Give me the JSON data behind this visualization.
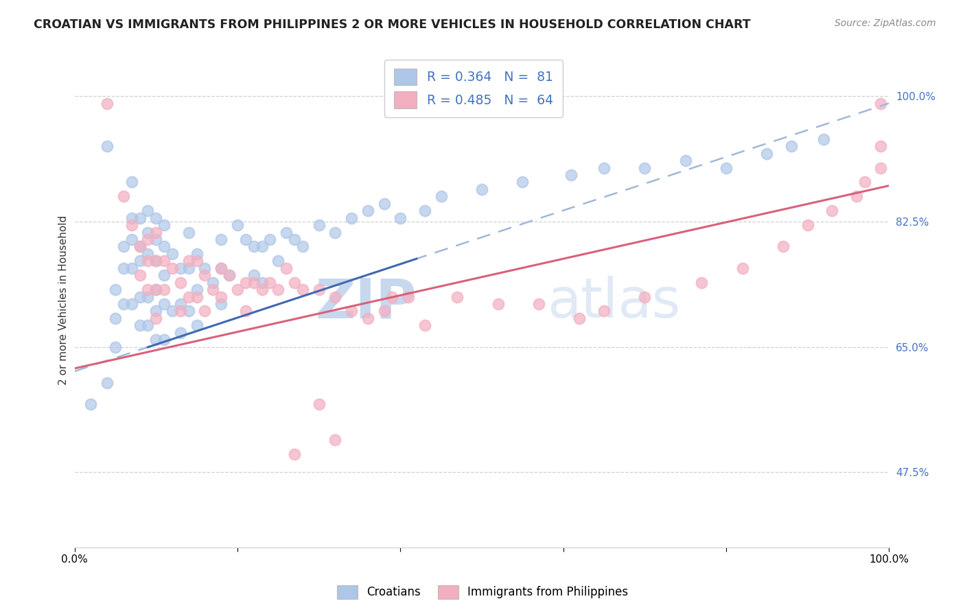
{
  "title": "CROATIAN VS IMMIGRANTS FROM PHILIPPINES 2 OR MORE VEHICLES IN HOUSEHOLD CORRELATION CHART",
  "source": "Source: ZipAtlas.com",
  "ylabel": "2 or more Vehicles in Household",
  "yticks": [
    "47.5%",
    "65.0%",
    "82.5%",
    "100.0%"
  ],
  "ytick_vals": [
    0.475,
    0.65,
    0.825,
    1.0
  ],
  "xlim": [
    0.0,
    1.0
  ],
  "ylim": [
    0.37,
    1.06
  ],
  "blue_color": "#aec6e8",
  "pink_color": "#f2afc0",
  "blue_line_color": "#4169b0",
  "pink_line_color": "#d9607a",
  "watermark_zip": "ZIP",
  "watermark_atlas": "atlas",
  "croatians_label": "Croatians",
  "philippines_label": "Immigrants from Philippines",
  "blue_scatter_x": [
    0.02,
    0.04,
    0.04,
    0.05,
    0.05,
    0.05,
    0.06,
    0.06,
    0.06,
    0.07,
    0.07,
    0.07,
    0.07,
    0.07,
    0.08,
    0.08,
    0.08,
    0.08,
    0.08,
    0.09,
    0.09,
    0.09,
    0.09,
    0.09,
    0.1,
    0.1,
    0.1,
    0.1,
    0.1,
    0.1,
    0.11,
    0.11,
    0.11,
    0.11,
    0.11,
    0.12,
    0.12,
    0.13,
    0.13,
    0.13,
    0.14,
    0.14,
    0.14,
    0.15,
    0.15,
    0.15,
    0.16,
    0.17,
    0.18,
    0.18,
    0.18,
    0.19,
    0.2,
    0.21,
    0.22,
    0.22,
    0.23,
    0.23,
    0.24,
    0.25,
    0.26,
    0.27,
    0.28,
    0.3,
    0.32,
    0.34,
    0.36,
    0.38,
    0.4,
    0.43,
    0.45,
    0.5,
    0.55,
    0.61,
    0.65,
    0.7,
    0.75,
    0.8,
    0.85,
    0.88,
    0.92
  ],
  "blue_scatter_y": [
    0.57,
    0.93,
    0.6,
    0.73,
    0.69,
    0.65,
    0.79,
    0.76,
    0.71,
    0.88,
    0.83,
    0.8,
    0.76,
    0.71,
    0.83,
    0.79,
    0.77,
    0.72,
    0.68,
    0.84,
    0.81,
    0.78,
    0.72,
    0.68,
    0.83,
    0.8,
    0.77,
    0.73,
    0.7,
    0.66,
    0.82,
    0.79,
    0.75,
    0.71,
    0.66,
    0.78,
    0.7,
    0.76,
    0.71,
    0.67,
    0.81,
    0.76,
    0.7,
    0.78,
    0.73,
    0.68,
    0.76,
    0.74,
    0.8,
    0.76,
    0.71,
    0.75,
    0.82,
    0.8,
    0.79,
    0.75,
    0.79,
    0.74,
    0.8,
    0.77,
    0.81,
    0.8,
    0.79,
    0.82,
    0.81,
    0.83,
    0.84,
    0.85,
    0.83,
    0.84,
    0.86,
    0.87,
    0.88,
    0.89,
    0.9,
    0.9,
    0.91,
    0.9,
    0.92,
    0.93,
    0.94
  ],
  "pink_scatter_x": [
    0.04,
    0.06,
    0.07,
    0.08,
    0.08,
    0.09,
    0.09,
    0.09,
    0.1,
    0.1,
    0.1,
    0.1,
    0.11,
    0.11,
    0.12,
    0.13,
    0.13,
    0.14,
    0.14,
    0.15,
    0.15,
    0.16,
    0.16,
    0.17,
    0.18,
    0.18,
    0.19,
    0.2,
    0.21,
    0.21,
    0.22,
    0.23,
    0.24,
    0.25,
    0.26,
    0.27,
    0.28,
    0.3,
    0.32,
    0.34,
    0.36,
    0.38,
    0.39,
    0.41,
    0.43,
    0.47,
    0.52,
    0.57,
    0.62,
    0.65,
    0.7,
    0.77,
    0.82,
    0.87,
    0.9,
    0.93,
    0.96,
    0.97,
    0.99,
    0.99,
    0.99,
    0.3,
    0.27,
    0.32
  ],
  "pink_scatter_y": [
    0.99,
    0.86,
    0.82,
    0.79,
    0.75,
    0.8,
    0.77,
    0.73,
    0.81,
    0.77,
    0.73,
    0.69,
    0.77,
    0.73,
    0.76,
    0.74,
    0.7,
    0.77,
    0.72,
    0.77,
    0.72,
    0.75,
    0.7,
    0.73,
    0.76,
    0.72,
    0.75,
    0.73,
    0.74,
    0.7,
    0.74,
    0.73,
    0.74,
    0.73,
    0.76,
    0.74,
    0.73,
    0.73,
    0.72,
    0.7,
    0.69,
    0.7,
    0.72,
    0.72,
    0.68,
    0.72,
    0.71,
    0.71,
    0.69,
    0.7,
    0.72,
    0.74,
    0.76,
    0.79,
    0.82,
    0.84,
    0.86,
    0.88,
    0.9,
    0.93,
    0.99,
    0.57,
    0.5,
    0.52
  ],
  "blue_line_x": [
    0.0,
    1.0
  ],
  "blue_line_y": [
    0.616,
    0.99
  ],
  "pink_line_x": [
    0.0,
    1.0
  ],
  "pink_line_y": [
    0.62,
    0.875
  ],
  "blue_dashed_color": "#a0b8d8",
  "legend_entries": [
    "R = 0.364   N =  81",
    "R = 0.485   N =  64"
  ]
}
